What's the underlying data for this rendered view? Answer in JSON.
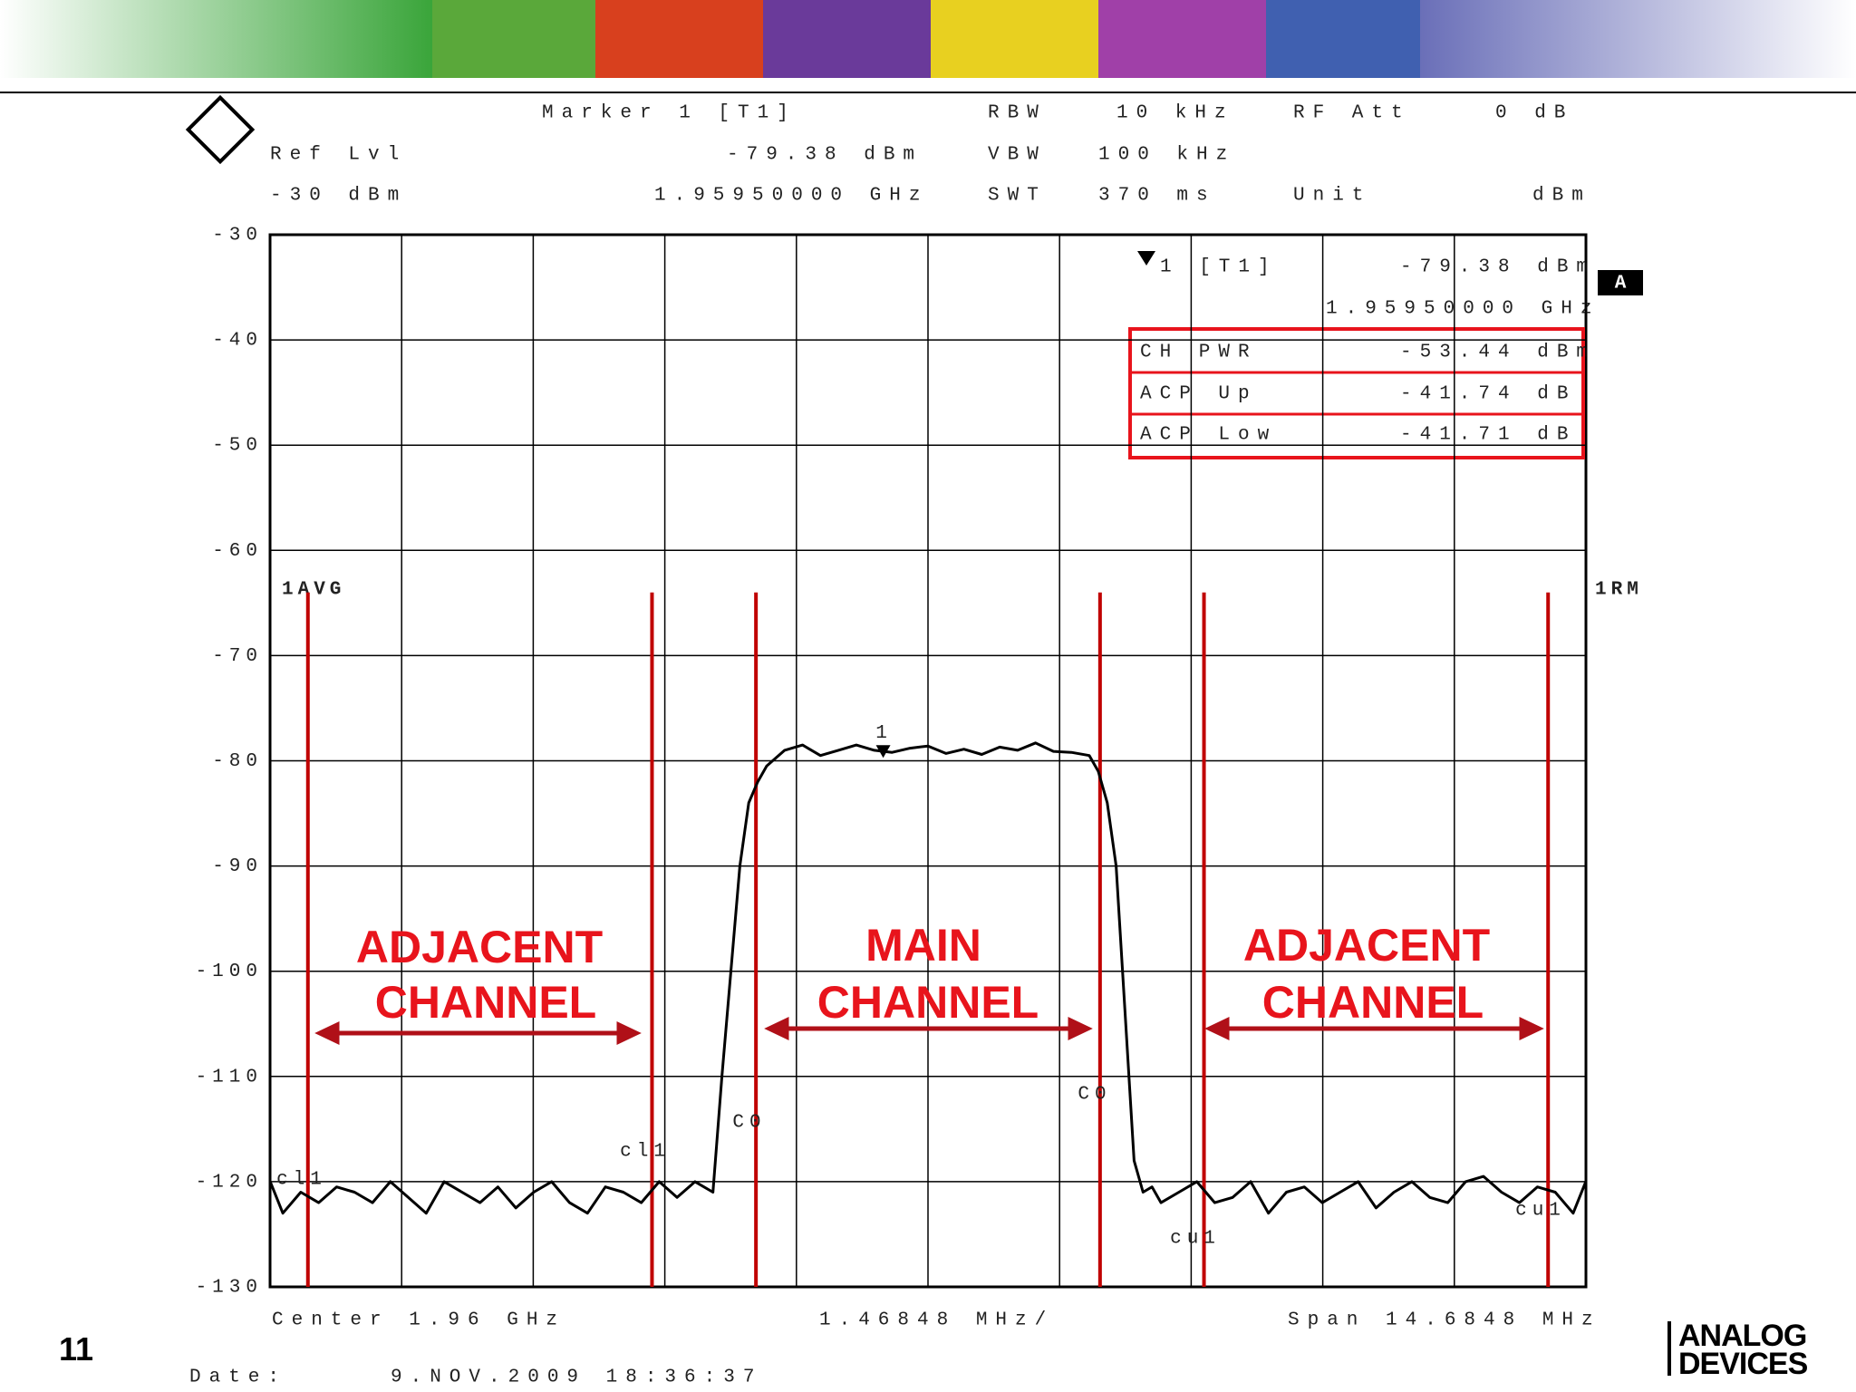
{
  "page": {
    "number": "11",
    "logo": [
      "ANALOG",
      "DEVICES"
    ]
  },
  "chart_data": {
    "type": "line",
    "header": {
      "marker": "Marker 1 [T1]",
      "ref_lvl_label": "Ref Lvl",
      "ref_lvl": "-30 dBm",
      "marker_level": "-79.38 dBm",
      "marker_freq": "1.95950000 GHz",
      "rbw_label": "RBW",
      "rbw": "10 kHz",
      "vbw_label": "VBW",
      "vbw": "100 kHz",
      "swt_label": "SWT",
      "swt": "370 ms",
      "rf_att_label": "RF Att",
      "rf_att": "0 dB",
      "unit_label": "Unit",
      "unit": "dBm"
    },
    "readout": {
      "marker": "1 [T1]",
      "level": "-79.38 dBm",
      "freq": "1.95950000 GHz",
      "rows": [
        [
          "CH PWR",
          "-53.44 dBm"
        ],
        [
          "ACP Up",
          "-41.74 dB"
        ],
        [
          "ACP Low",
          "-41.71 dB"
        ]
      ]
    },
    "trace_labels": {
      "left": "1AVG",
      "right": "1RM",
      "screen": "A"
    },
    "annotations": [
      {
        "lines": [
          "ADJACENT",
          "CHANNEL"
        ]
      },
      {
        "lines": [
          "MAIN",
          "CHANNEL"
        ]
      },
      {
        "lines": [
          "ADJACENT",
          "CHANNEL"
        ]
      }
    ],
    "footer": {
      "center": "Center 1.96 GHz",
      "per_div": "1.46848 MHz/",
      "span": "Span 14.6848 MHz",
      "date_label": "Date:",
      "date": "9.NOV.2009 18:36:37"
    },
    "x": [
      -7.34,
      -7.2,
      -7.0,
      -6.8,
      -6.6,
      -6.4,
      -6.2,
      -6.0,
      -5.8,
      -5.6,
      -5.4,
      -5.2,
      -5.0,
      -4.8,
      -4.6,
      -4.4,
      -4.2,
      -4.0,
      -3.8,
      -3.6,
      -3.4,
      -3.2,
      -3.0,
      -2.8,
      -2.6,
      -2.4,
      -2.3,
      -2.2,
      -2.1,
      -2.0,
      -1.9,
      -1.8,
      -1.6,
      -1.4,
      -1.2,
      -1.0,
      -0.8,
      -0.6,
      -0.4,
      -0.2,
      0,
      0.2,
      0.4,
      0.6,
      0.8,
      1.0,
      1.2,
      1.4,
      1.6,
      1.8,
      1.9,
      2.0,
      2.1,
      2.2,
      2.3,
      2.4,
      2.5,
      2.6,
      2.8,
      3.0,
      3.2,
      3.4,
      3.6,
      3.8,
      4.0,
      4.2,
      4.4,
      4.6,
      4.8,
      5.0,
      5.2,
      5.4,
      5.6,
      5.8,
      6.0,
      6.2,
      6.4,
      6.6,
      6.8,
      7.0,
      7.2,
      7.34
    ],
    "series": [
      {
        "color": "#000000",
        "values": [
          -120,
          -123,
          -121,
          -122,
          -120.5,
          -121,
          -122,
          -120,
          -121.5,
          -123,
          -120,
          -121,
          -122,
          -120.5,
          -122.5,
          -121,
          -120,
          -122,
          -123,
          -120.5,
          -121,
          -122,
          -120,
          -121.5,
          -120,
          -121,
          -110,
          -100,
          -90,
          -84,
          -82,
          -80.5,
          -79,
          -78.5,
          -79.5,
          -79,
          -78.5,
          -79,
          -79.2,
          -78.8,
          -78.6,
          -79.3,
          -78.9,
          -79.4,
          -78.7,
          -79,
          -78.3,
          -79.1,
          -79.2,
          -79.5,
          -81,
          -84,
          -90,
          -104,
          -118,
          -121,
          -120.5,
          -122,
          -121,
          -120,
          -122,
          -121.5,
          -120,
          -123,
          -121,
          -120.5,
          -122,
          -121,
          -120,
          -122.5,
          -121,
          -120,
          -121.5,
          -122,
          -120,
          -119.5,
          -121,
          -122,
          -120.5,
          -121,
          -123,
          -120
        ]
      }
    ],
    "xlim": [
      -7.3424,
      7.3424
    ],
    "xticks": [
      -7.3424,
      -5.87392,
      -4.40544,
      -2.93696,
      -1.46848,
      0,
      1.46848,
      2.93696,
      4.40544,
      5.87392,
      7.3424
    ],
    "ylim": [
      -130,
      -30
    ],
    "yticks": [
      -30,
      -40,
      -50,
      -60,
      -70,
      -80,
      -90,
      -100,
      -110,
      -120,
      -130
    ],
    "grid": true,
    "channel_color": "#c00000",
    "channel_lines": [
      {
        "x": -6.92,
        "label": "cl1"
      },
      {
        "x": -3.08,
        "label": "cl1"
      },
      {
        "x": -1.92,
        "label": "C0"
      },
      {
        "x": 1.92,
        "label": "C0"
      },
      {
        "x": 3.08,
        "label": "cu1"
      },
      {
        "x": 6.92,
        "label": "cu1"
      }
    ],
    "marker": {
      "x": -0.5,
      "y": -79.38,
      "label": "1"
    }
  }
}
